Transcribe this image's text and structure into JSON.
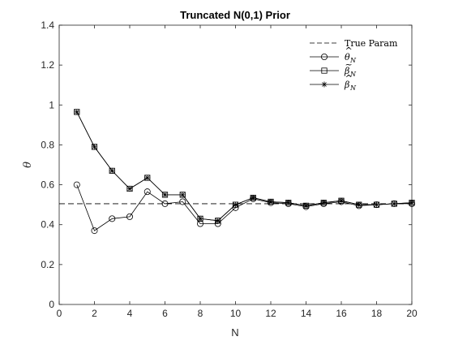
{
  "chart_data": {
    "type": "line",
    "title": "Truncated N(0,1) Prior",
    "xlabel": "N",
    "ylabel": "θ",
    "xlim": [
      0,
      20
    ],
    "ylim": [
      0,
      1.4
    ],
    "xticks": [
      0,
      2,
      4,
      6,
      8,
      10,
      12,
      14,
      16,
      18,
      20
    ],
    "yticks": [
      0,
      0.2,
      0.4,
      0.6,
      0.8,
      1,
      1.2,
      1.4
    ],
    "ytick_labels": [
      "0",
      "0.2",
      "0.4",
      "0.6",
      "0.8",
      "1",
      "1.2",
      "1.4"
    ],
    "grid": false,
    "legend_position": "top-right",
    "true_param": 0.505,
    "x": [
      1,
      2,
      3,
      4,
      5,
      6,
      7,
      8,
      9,
      10,
      11,
      12,
      13,
      14,
      15,
      16,
      17,
      18,
      19,
      20
    ],
    "series": [
      {
        "key": "theta",
        "marker": "circle",
        "values": [
          0.6,
          0.37,
          0.43,
          0.44,
          0.565,
          0.505,
          0.515,
          0.405,
          0.405,
          0.485,
          0.53,
          0.51,
          0.505,
          0.49,
          0.505,
          0.515,
          0.495,
          0.5,
          0.505,
          0.505
        ]
      },
      {
        "key": "beta_tilde",
        "marker": "square",
        "values": [
          0.965,
          0.79,
          0.67,
          0.58,
          0.635,
          0.55,
          0.55,
          0.43,
          0.42,
          0.5,
          0.535,
          0.515,
          0.51,
          0.495,
          0.51,
          0.52,
          0.5,
          0.5,
          0.505,
          0.51
        ]
      },
      {
        "key": "beta_hat",
        "marker": "star",
        "values": [
          0.965,
          0.79,
          0.67,
          0.58,
          0.635,
          0.55,
          0.55,
          0.43,
          0.42,
          0.5,
          0.535,
          0.515,
          0.51,
          0.495,
          0.51,
          0.52,
          0.5,
          0.5,
          0.505,
          0.51
        ]
      }
    ],
    "legend": [
      {
        "key": "true_param",
        "style": "dashed",
        "text": "True Param"
      },
      {
        "key": "theta",
        "style": "circle",
        "symbol": "θ",
        "accent": "^",
        "sub": "N"
      },
      {
        "key": "beta_tilde",
        "style": "square",
        "symbol": "β",
        "accent": "~",
        "sub": "N"
      },
      {
        "key": "beta_hat",
        "style": "star",
        "symbol": "β",
        "accent": "^",
        "sub": "N"
      }
    ],
    "colors": {
      "line": "#000000",
      "axes": "#262626",
      "background": "#ffffff"
    }
  }
}
